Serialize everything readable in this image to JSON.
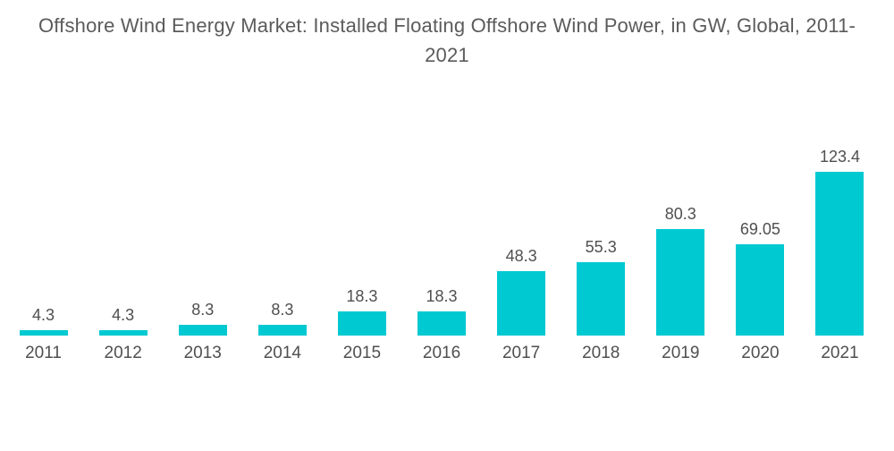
{
  "chart_data": {
    "type": "bar",
    "title": "Offshore Wind Energy Market: Installed Floating Offshore Wind Power, in GW, Global, 2011-2021",
    "categories": [
      "2011",
      "2012",
      "2013",
      "2014",
      "2015",
      "2016",
      "2017",
      "2018",
      "2019",
      "2020",
      "2021"
    ],
    "values": [
      4.3,
      4.3,
      8.3,
      8.3,
      18.3,
      18.3,
      48.3,
      55.3,
      80.3,
      69.05,
      123.4
    ],
    "value_labels": [
      "4.3",
      "4.3",
      "8.3",
      "8.3",
      "18.3",
      "18.3",
      "48.3",
      "55.3",
      "80.3",
      "69.05",
      "123.4"
    ],
    "xlabel": "",
    "ylabel": "",
    "ylim": [
      0,
      130
    ],
    "grid": false,
    "legend": false,
    "data_labels_position": "above-bars",
    "colors": {
      "bar": "#00C9D1",
      "value_label": "#4F4F4F",
      "axis_label": "#4F4F4F",
      "title": "#5B5B5B",
      "background": "#FFFFFF"
    }
  }
}
